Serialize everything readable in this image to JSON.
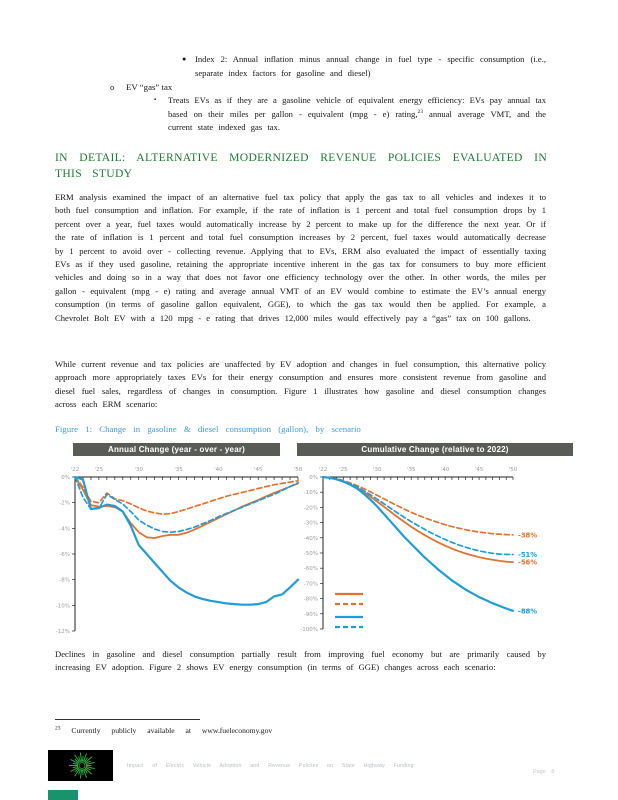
{
  "bullets": {
    "index2": "Index 2:  Annual inflation minus annual change in fuel type - specific consumption (i.e., separate index factors for gasoline and diesel)",
    "index2_marker": "●",
    "ev_gas_tax": "EV “gas” tax",
    "ev_marker": "o",
    "treats_marker": "▪",
    "treats_pre": "Treats EVs as if they are a gasoline vehicle of equivalent energy efficiency: EVs pay annual tax based on their miles per gallon - equivalent (mpg - e) rating,",
    "footnote_ref": "23",
    "treats_post": " annual average VMT, and the current state indexed gas tax."
  },
  "heading": "IN DETAIL: ALTERNATIVE MODERNIZED REVENUE POLICIES EVALUATED IN THIS STUDY",
  "paragraphs": {
    "p1": "ERM analysis examined the impact of an alternative fuel tax policy that apply the gas tax to all vehicles and indexes it to both fuel consumption and inflation. For example, if the rate of inflation is 1 percent and total fuel consumption drops by 1 percent over a year, fuel taxes would automatically increase by 2 percent to make up for the difference the next year. Or if the rate of inflation is 1 percent and total fuel consumption increases by 2 percent, fuel taxes would automatically decrease by 1 percent to avoid over - collecting revenue. Applying that to EVs, ERM also evaluated the impact of essentially taxing EVs as if they used gasoline, retaining the appropriate incentive inherent in the gas tax for consumers to buy more efficient vehicles and doing so in a way that does not favor one efficiency technology over the other. In other words, the miles per gallon - equivalent (mpg - e) rating and average annual VMT of an EV would combine to estimate the EV’s annual energy consumption (in terms of gasoline gallon equivalent, GGE), to which the gas tax would then be applied. For example, a Chevrolet Bolt EV with a 120 mpg - e rating that drives 12,000 miles would effectively pay a “gas” tax on 100 gallons.",
    "p2": "While current revenue and tax policies are unaffected by EV adoption and changes in fuel consumption, this alternative policy approach more appropriately taxes EVs for their energy consumption and ensures more consistent revenue from gasoline and diesel fuel sales, regardless of changes in consumption. Figure 1 illustrates how gasoline and diesel consumption changes across each ERM scenario:",
    "p3": "Declines in gasoline and diesel consumption partially result from improving fuel economy but are primarily caused by increasing EV adoption. Figure 2 shows EV energy consumption (in terms of GGE) changes across each scenario:"
  },
  "figure_caption": "Figure 1: Change in gasoline & diesel consumption (gallon), by scenario",
  "chart_data": [
    {
      "type": "line",
      "title": "Annual Change (year - over - year)",
      "x_start": 2022,
      "x_end": 2050,
      "x_ticks": [
        {
          "year": 2022,
          "label": "'22"
        },
        {
          "year": 2025,
          "label": "'25"
        },
        {
          "year": 2030,
          "label": "'30"
        },
        {
          "year": 2035,
          "label": "'35"
        },
        {
          "year": 2040,
          "label": "'40"
        },
        {
          "year": 2045,
          "label": "'45"
        },
        {
          "year": 2050,
          "label": "'50"
        }
      ],
      "ylim": [
        -12,
        0
      ],
      "y_ticks": [
        {
          "v": 0,
          "label": "0%"
        },
        {
          "v": -2,
          "label": "-2%"
        },
        {
          "v": -4,
          "label": "-4%"
        },
        {
          "v": -6,
          "label": "-6%"
        },
        {
          "v": -8,
          "label": "-8%"
        },
        {
          "v": -10,
          "label": "-10%"
        },
        {
          "v": -12,
          "label": "-12%"
        }
      ],
      "series": [
        {
          "name": "orange-solid",
          "color": "#e4712d",
          "style": "solid",
          "width": 1.8,
          "values": [
            0,
            -1.0,
            -2.2,
            -2.3,
            -2.25,
            -2.35,
            -2.7,
            -3.6,
            -4.3,
            -4.7,
            -4.75,
            -4.6,
            -4.5,
            -4.5,
            -4.35,
            -4.1,
            -3.8,
            -3.5,
            -3.2,
            -2.9,
            -2.6,
            -2.3,
            -2.05,
            -1.8,
            -1.5,
            -1.25,
            -1.0,
            -0.75,
            -0.5
          ]
        },
        {
          "name": "orange-dashed",
          "color": "#e4712d",
          "style": "dashed",
          "width": 1.7,
          "values": [
            0,
            -0.8,
            -1.9,
            -2.0,
            -1.25,
            -1.7,
            -1.85,
            -2.1,
            -2.4,
            -2.65,
            -2.8,
            -2.9,
            -2.85,
            -2.7,
            -2.5,
            -2.3,
            -2.1,
            -1.9,
            -1.7,
            -1.5,
            -1.35,
            -1.2,
            -1.05,
            -0.9,
            -0.75,
            -0.6,
            -0.5,
            -0.4,
            -0.3
          ]
        },
        {
          "name": "blue-solid",
          "color": "#209cd8",
          "style": "solid",
          "width": 2.2,
          "values": [
            0,
            -0.2,
            -2.5,
            -2.4,
            -2.15,
            -2.25,
            -2.7,
            -3.8,
            -5.3,
            -6.0,
            -6.7,
            -7.4,
            -8.1,
            -8.6,
            -9.0,
            -9.3,
            -9.5,
            -9.65,
            -9.75,
            -9.85,
            -9.9,
            -9.95,
            -9.95,
            -9.9,
            -9.75,
            -9.3,
            -9.15,
            -8.6,
            -8.0
          ]
        },
        {
          "name": "blue-dashed",
          "color": "#209cd8",
          "style": "dashed",
          "width": 1.7,
          "values": [
            0,
            -1.6,
            -2.5,
            -2.45,
            -1.35,
            -1.75,
            -2.1,
            -2.7,
            -3.35,
            -3.75,
            -4.05,
            -4.25,
            -4.3,
            -4.25,
            -4.1,
            -3.9,
            -3.65,
            -3.4,
            -3.1,
            -2.85,
            -2.6,
            -2.35,
            -2.1,
            -1.85,
            -1.6,
            -1.35,
            -1.05,
            -0.75,
            -0.45
          ]
        }
      ]
    },
    {
      "type": "line",
      "title": "Cumulative Change (relative to 2022)",
      "x_start": 2022,
      "x_end": 2050,
      "x_ticks": [
        {
          "year": 2022,
          "label": "'22"
        },
        {
          "year": 2025,
          "label": "'25"
        },
        {
          "year": 2030,
          "label": "'30"
        },
        {
          "year": 2035,
          "label": "'35"
        },
        {
          "year": 2040,
          "label": "'40"
        },
        {
          "year": 2045,
          "label": "'45"
        },
        {
          "year": 2050,
          "label": "'50"
        }
      ],
      "ylim": [
        -100,
        0
      ],
      "y_ticks": [
        {
          "v": 0,
          "label": "0%"
        },
        {
          "v": -10,
          "label": "-10%"
        },
        {
          "v": -20,
          "label": "-20%"
        },
        {
          "v": -30,
          "label": "-30%"
        },
        {
          "v": -40,
          "label": "-40%"
        },
        {
          "v": -50,
          "label": "-50%"
        },
        {
          "v": -60,
          "label": "-60%"
        },
        {
          "v": -70,
          "label": "-70%"
        },
        {
          "v": -80,
          "label": "-80%"
        },
        {
          "v": -90,
          "label": "-90%"
        },
        {
          "v": -100,
          "label": "-100%"
        }
      ],
      "series": [
        {
          "name": "orange-solid",
          "color": "#e4712d",
          "style": "solid",
          "width": 1.8,
          "end_label": "-56%",
          "values": [
            0,
            -0.5,
            -1.5,
            -3,
            -4.8,
            -7,
            -9.8,
            -13,
            -16.2,
            -19.6,
            -23,
            -26.4,
            -29.6,
            -32.7,
            -35.6,
            -38.3,
            -40.8,
            -43.1,
            -45.2,
            -47.1,
            -48.8,
            -50.3,
            -51.6,
            -52.7,
            -53.7,
            -54.5,
            -55.2,
            -55.7,
            -56
          ]
        },
        {
          "name": "orange-dashed",
          "color": "#e4712d",
          "style": "dashed",
          "width": 1.7,
          "end_label": "-38%",
          "values": [
            0,
            -0.4,
            -1.2,
            -2.4,
            -3.9,
            -5.6,
            -7.6,
            -9.8,
            -12.1,
            -14.4,
            -16.7,
            -19,
            -21.2,
            -23.2,
            -25.1,
            -26.9,
            -28.5,
            -30,
            -31.4,
            -32.6,
            -33.7,
            -34.7,
            -35.5,
            -36.2,
            -36.8,
            -37.3,
            -37.6,
            -37.9,
            -38
          ]
        },
        {
          "name": "blue-solid",
          "color": "#209cd8",
          "style": "solid",
          "width": 2.2,
          "end_label": "-88%",
          "values": [
            0,
            -0.5,
            -1.5,
            -3,
            -5,
            -7.5,
            -11,
            -15,
            -19.5,
            -24.5,
            -29.5,
            -34.5,
            -39.5,
            -44,
            -48.5,
            -53,
            -57,
            -61,
            -64.5,
            -68,
            -71,
            -74,
            -76.5,
            -79,
            -81,
            -83,
            -84.8,
            -86.5,
            -88
          ]
        },
        {
          "name": "blue-dashed",
          "color": "#209cd8",
          "style": "dashed",
          "width": 1.7,
          "end_label": "-51%",
          "values": [
            0,
            -0.5,
            -1.4,
            -2.8,
            -4.5,
            -6.5,
            -9,
            -11.8,
            -14.7,
            -17.7,
            -20.7,
            -23.7,
            -26.6,
            -29.4,
            -32,
            -34.5,
            -36.9,
            -39.1,
            -41.1,
            -43,
            -44.7,
            -46.2,
            -47.5,
            -48.6,
            -49.5,
            -50.2,
            -50.7,
            -50.9,
            -51
          ]
        }
      ],
      "legend_order": [
        "orange-solid",
        "orange-dashed",
        "blue-solid",
        "blue-dashed"
      ]
    }
  ],
  "footnote": {
    "ref": "23",
    "text": "Currently publicly available at",
    "url": "www.fueleconomy.gov"
  },
  "footer": {
    "title": "Impact of Electric Vehicle Adoption and Revenue Policies on State Highway Funding",
    "page": "Page 8"
  }
}
